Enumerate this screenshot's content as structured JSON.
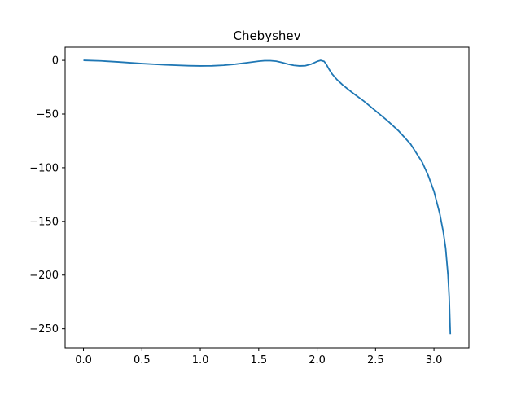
{
  "chart_data": {
    "type": "line",
    "title": "Chebyshev",
    "xlabel": "",
    "ylabel": "",
    "xlim": [
      -0.157,
      3.299
    ],
    "ylim": [
      -267.7,
      12.2
    ],
    "grid": false,
    "legend": "none",
    "x_ticks": [
      0.0,
      0.5,
      1.0,
      1.5,
      2.0,
      2.5,
      3.0
    ],
    "x_tick_labels": [
      "0.0",
      "0.5",
      "1.0",
      "1.5",
      "2.0",
      "2.5",
      "3.0"
    ],
    "y_ticks": [
      0,
      -50,
      -100,
      -150,
      -200,
      -250
    ],
    "y_tick_labels": [
      "0",
      "−50",
      "−100",
      "−150",
      "−200",
      "−250"
    ],
    "series": [
      {
        "color": "#1f77b4",
        "x": [
          0.0,
          0.15,
          0.3,
          0.5,
          0.7,
          0.9,
          1.0,
          1.1,
          1.2,
          1.3,
          1.4,
          1.5,
          1.55,
          1.6,
          1.65,
          1.7,
          1.75,
          1.8,
          1.85,
          1.9,
          1.95,
          2.0,
          2.03,
          2.06,
          2.08,
          2.1,
          2.13,
          2.17,
          2.22,
          2.3,
          2.4,
          2.5,
          2.6,
          2.7,
          2.8,
          2.9,
          2.95,
          3.0,
          3.05,
          3.08,
          3.1,
          3.12,
          3.13,
          3.14
        ],
        "y": [
          0.0,
          -0.5,
          -1.5,
          -3.0,
          -4.2,
          -5.0,
          -5.2,
          -5.1,
          -4.6,
          -3.6,
          -2.2,
          -0.8,
          -0.3,
          -0.3,
          -0.8,
          -2.0,
          -3.5,
          -4.7,
          -5.2,
          -5.0,
          -3.5,
          -1.0,
          0.0,
          -1.0,
          -4.0,
          -8.0,
          -13.0,
          -18.0,
          -23.0,
          -30.0,
          -38.0,
          -47.0,
          -56.0,
          -66.0,
          -78.0,
          -95.0,
          -107.0,
          -122.0,
          -143.0,
          -160.0,
          -175.0,
          -200.0,
          -220.0,
          -255.0
        ]
      }
    ]
  }
}
